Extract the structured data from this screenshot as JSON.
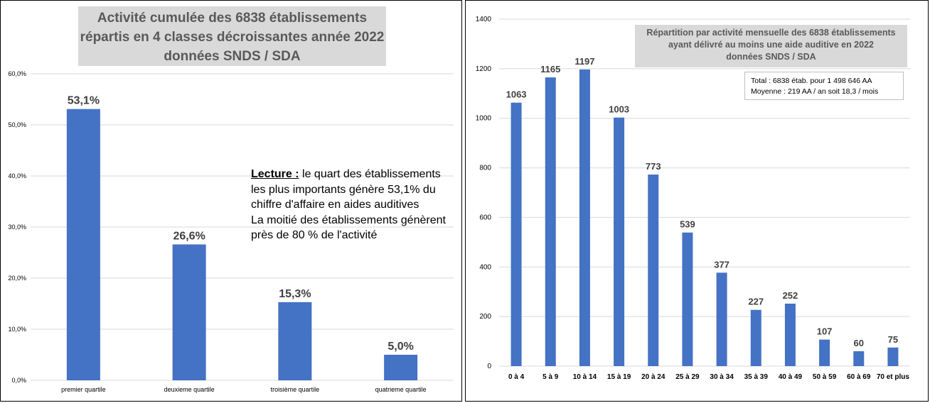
{
  "left": {
    "title_lines": [
      "Activité cumulée des 6838 établissements",
      "répartis en 4 classes décroissantes année 2022",
      "données SNDS / SDA"
    ],
    "lecture_label": "Lecture :",
    "lecture_text_1": " le quart des établissements les plus importants génère 53,1% du chiffre d'affaire en aides auditives",
    "lecture_text_2": "La moitié des établissements génèrent près de 80 % de l'activité"
  },
  "right": {
    "title_lines": [
      "Répartition par activité mensuelle des 6838 établissements",
      "ayant délivré au moins une aide auditive en 2022",
      "données SNDS / SDA"
    ],
    "info_lines": [
      "Total : 6838 étab. pour 1 498 646 AA",
      "Moyenne : 219 AA / an soit  18,3 / mois"
    ]
  },
  "colors": {
    "bar": "#4472c4",
    "grid": "#d9d9d9",
    "title_bg": "#d9d9d9",
    "title_text": "#595959"
  },
  "chart_data": [
    {
      "type": "bar",
      "title": "Activité cumulée des 6838 établissements répartis en 4 classes décroissantes année 2022 données SNDS / SDA",
      "categories": [
        "premier quartile",
        "deuxieme quartile",
        "troisième quartile",
        "quatrieme quartile"
      ],
      "values": [
        53.1,
        26.6,
        15.3,
        5.0
      ],
      "data_labels": [
        "53,1%",
        "26,6%",
        "15,3%",
        "5,0%"
      ],
      "ylim": [
        0,
        60
      ],
      "yticks": [
        0,
        10,
        20,
        30,
        40,
        50,
        60
      ],
      "ytick_labels": [
        "0,0%",
        "10,0%",
        "20,0%",
        "30,0%",
        "40,0%",
        "50,0%",
        "60,0%"
      ],
      "grid": true
    },
    {
      "type": "bar",
      "title": "Répartition par activité mensuelle des 6838 établissements ayant délivré au moins une aide auditive en 2022 données SNDS / SDA",
      "categories": [
        "0 à 4",
        "5 à 9",
        "10 à 14",
        "15 à 19",
        "20 à 24",
        "25 à 29",
        "30 à 34",
        "35 à 39",
        "40 à 49",
        "50 à 59",
        "60 à 69",
        "70 et plus"
      ],
      "values": [
        1063,
        1165,
        1197,
        1003,
        773,
        539,
        377,
        227,
        252,
        107,
        60,
        75
      ],
      "ylim": [
        0,
        1400
      ],
      "yticks": [
        0,
        200,
        400,
        600,
        800,
        1000,
        1200,
        1400
      ],
      "grid": true
    }
  ]
}
